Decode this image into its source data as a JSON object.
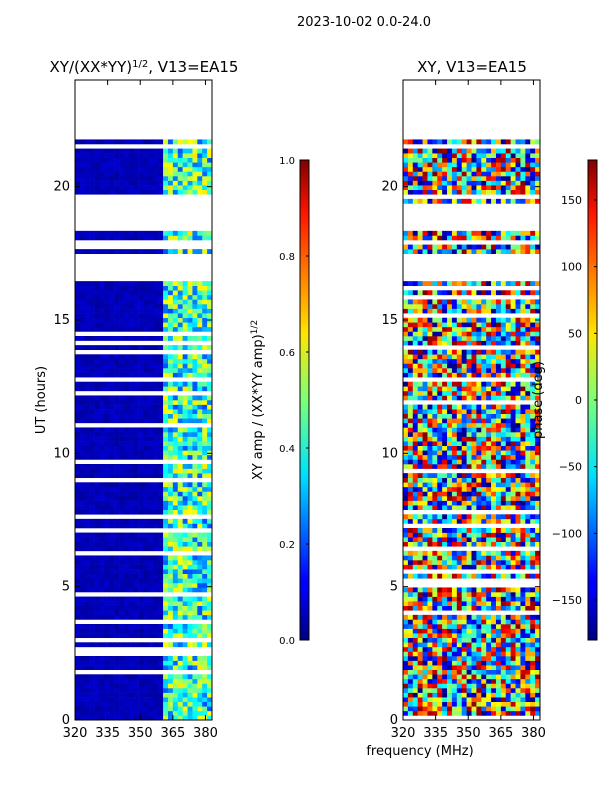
{
  "chart_data": {
    "suptitle": "2023-10-02 0.0-24.0",
    "xlabel_shared": "frequency (MHz)",
    "panels": [
      {
        "type": "heatmap",
        "title_main": "XY/(XX*YY)",
        "title_exp": "1/2",
        "title_suffix": ", V13=EA15",
        "ylabel": "UT (hours)",
        "xlim": [
          320,
          383
        ],
        "ylim": [
          0,
          24
        ],
        "xticks": [
          320,
          335,
          350,
          365,
          380
        ],
        "yticks": [
          0,
          5,
          10,
          15,
          20
        ],
        "colorbar": {
          "label_main": "XY amp / (XX*YY amp)",
          "label_exp": "1/2",
          "range": [
            0.0,
            1.0
          ],
          "ticks": [
            "0.0",
            "0.2",
            "0.4",
            "0.6",
            "0.8",
            "1.0"
          ],
          "tick_values": [
            0.0,
            0.2,
            0.4,
            0.6,
            0.8,
            1.0
          ]
        },
        "data_spans_hours": [
          [
            0.05,
            21.7
          ]
        ],
        "gap_bands_hours": [
          [
            16.5,
            17.5
          ],
          [
            18.3,
            19.3
          ],
          [
            19.5,
            19.65
          ],
          [
            17.85,
            18.0
          ],
          [
            21.7,
            24.0
          ]
        ],
        "active_freq_bands_mhz": [
          [
            360,
            383
          ]
        ]
      },
      {
        "type": "heatmap",
        "title_main": "XY, V13=EA15",
        "title_exp": "",
        "title_suffix": "",
        "ylabel": "",
        "xlim": [
          320,
          383
        ],
        "ylim": [
          0,
          24
        ],
        "xticks": [
          320,
          335,
          350,
          365,
          380
        ],
        "yticks": [
          0,
          5,
          10,
          15,
          20
        ],
        "colorbar": {
          "label_main": "phase (deg)",
          "label_exp": "",
          "range": [
            -180,
            180
          ],
          "ticks": [
            "−150",
            "−100",
            "−50",
            "0",
            "50",
            "100",
            "150"
          ],
          "tick_values": [
            -150,
            -100,
            -50,
            0,
            50,
            100,
            150
          ]
        },
        "data_spans_hours": [
          [
            0.05,
            21.7
          ]
        ],
        "gap_bands_hours": [
          [
            16.5,
            17.5
          ],
          [
            18.3,
            19.3
          ],
          [
            19.5,
            19.65
          ],
          [
            17.85,
            18.0
          ],
          [
            21.7,
            24.0
          ]
        ],
        "active_freq_bands_mhz": [
          [
            320,
            383
          ]
        ]
      }
    ]
  }
}
